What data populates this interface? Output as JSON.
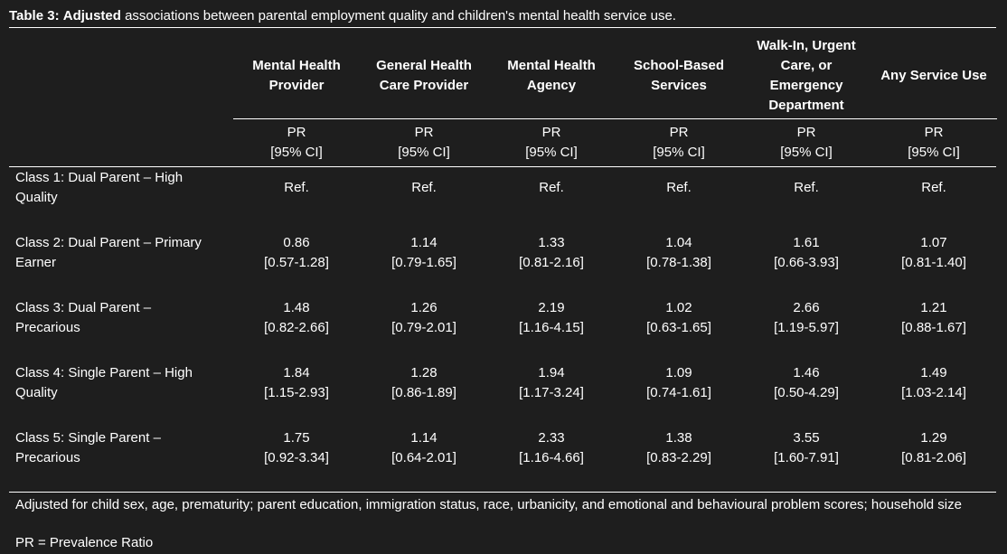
{
  "caption": {
    "label": "Table 3:",
    "bold_word": "Adjusted",
    "rest": " associations between parental employment quality and children's mental health service use."
  },
  "columns": [
    {
      "header": "Mental Health Provider",
      "stat": "PR",
      "ci": "[95% CI]"
    },
    {
      "header": "General Health Care Provider",
      "stat": "PR",
      "ci": "[95% CI]"
    },
    {
      "header": "Mental Health Agency",
      "stat": "PR",
      "ci": "[95% CI]"
    },
    {
      "header": "School-Based Services",
      "stat": "PR",
      "ci": "[95% CI]"
    },
    {
      "header": "Walk-In, Urgent Care, or Emergency Department",
      "stat": "PR",
      "ci": "[95% CI]"
    },
    {
      "header": "Any Service Use",
      "stat": "PR",
      "ci": "[95% CI]"
    }
  ],
  "rows": [
    {
      "label": "Class 1: Dual Parent – High Quality",
      "cells": [
        {
          "pr": "Ref.",
          "ci": ""
        },
        {
          "pr": "Ref.",
          "ci": ""
        },
        {
          "pr": "Ref.",
          "ci": ""
        },
        {
          "pr": "Ref.",
          "ci": ""
        },
        {
          "pr": "Ref.",
          "ci": ""
        },
        {
          "pr": "Ref.",
          "ci": ""
        }
      ]
    },
    {
      "label": "Class 2: Dual Parent – Primary Earner",
      "cells": [
        {
          "pr": "0.86",
          "ci": "[0.57-1.28]"
        },
        {
          "pr": "1.14",
          "ci": "[0.79-1.65]"
        },
        {
          "pr": "1.33",
          "ci": "[0.81-2.16]"
        },
        {
          "pr": "1.04",
          "ci": "[0.78-1.38]"
        },
        {
          "pr": "1.61",
          "ci": "[0.66-3.93]"
        },
        {
          "pr": "1.07",
          "ci": "[0.81-1.40]"
        }
      ]
    },
    {
      "label": "Class 3: Dual Parent – Precarious",
      "cells": [
        {
          "pr": "1.48",
          "ci": "[0.82-2.66]"
        },
        {
          "pr": "1.26",
          "ci": "[0.79-2.01]"
        },
        {
          "pr": "2.19",
          "ci": "[1.16-4.15]"
        },
        {
          "pr": "1.02",
          "ci": "[0.63-1.65]"
        },
        {
          "pr": "2.66",
          "ci": "[1.19-5.97]"
        },
        {
          "pr": "1.21",
          "ci": "[0.88-1.67]"
        }
      ]
    },
    {
      "label": "Class 4: Single Parent – High Quality",
      "cells": [
        {
          "pr": "1.84",
          "ci": "[1.15-2.93]"
        },
        {
          "pr": "1.28",
          "ci": "[0.86-1.89]"
        },
        {
          "pr": "1.94",
          "ci": "[1.17-3.24]"
        },
        {
          "pr": "1.09",
          "ci": "[0.74-1.61]"
        },
        {
          "pr": "1.46",
          "ci": "[0.50-4.29]"
        },
        {
          "pr": "1.49",
          "ci": "[1.03-2.14]"
        }
      ]
    },
    {
      "label": "Class 5: Single Parent – Precarious",
      "cells": [
        {
          "pr": "1.75",
          "ci": "[0.92-3.34]"
        },
        {
          "pr": "1.14",
          "ci": "[0.64-2.01]"
        },
        {
          "pr": "2.33",
          "ci": "[1.16-4.66]"
        },
        {
          "pr": "1.38",
          "ci": "[0.83-2.29]"
        },
        {
          "pr": "3.55",
          "ci": "[1.60-7.91]"
        },
        {
          "pr": "1.29",
          "ci": "[0.81-2.06]"
        }
      ]
    }
  ],
  "footnotes": [
    "Adjusted for child sex, age, prematurity; parent education, immigration status, race, urbanicity, and emotional and behavioural problem scores; household size",
    "PR = Prevalence Ratio"
  ]
}
